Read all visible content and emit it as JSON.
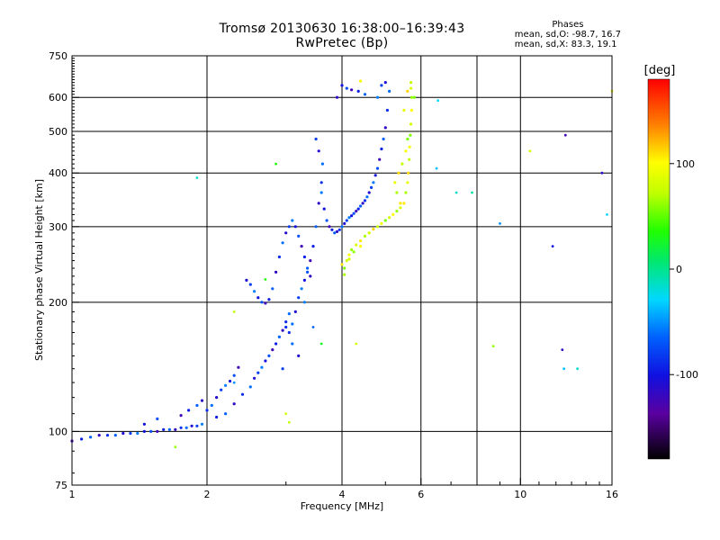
{
  "chart_data": {
    "type": "scatter",
    "title": "Tromsø 20130630 16:38:00–16:39:43",
    "subtitle": "RwPretec (Bp)",
    "xlabel": "Frequency [MHz]",
    "ylabel": "Stationary phase Virtual Height [km]",
    "x_scale": "log",
    "y_scale": "log",
    "xlim": [
      1,
      16
    ],
    "ylim": [
      75,
      750
    ],
    "x_ticks": [
      1,
      2,
      4,
      6,
      10,
      16
    ],
    "y_ticks": [
      75,
      100,
      200,
      300,
      400,
      500,
      600,
      750
    ],
    "x_gridlines": [
      2,
      4,
      6,
      8,
      10
    ],
    "y_gridlines": [
      100,
      200,
      300,
      400,
      500,
      600
    ],
    "grid": true,
    "phases_box": {
      "heading": "Phases",
      "line_o": "mean, sd,O: -98.7, 16.7",
      "line_x": "mean, sd,X:  83.3, 19.1"
    },
    "colorbar": {
      "label": "[deg]",
      "ticks": [
        100,
        0,
        -100
      ],
      "range": [
        -180,
        180
      ]
    },
    "series": [
      {
        "name": "O",
        "phase_mean": -98.7,
        "points": [
          [
            1.0,
            95
          ],
          [
            1.05,
            96
          ],
          [
            1.1,
            97
          ],
          [
            1.15,
            98
          ],
          [
            1.2,
            98
          ],
          [
            1.25,
            98
          ],
          [
            1.3,
            99
          ],
          [
            1.35,
            99
          ],
          [
            1.4,
            99
          ],
          [
            1.45,
            100
          ],
          [
            1.5,
            100
          ],
          [
            1.55,
            100
          ],
          [
            1.6,
            101
          ],
          [
            1.65,
            101
          ],
          [
            1.7,
            101
          ],
          [
            1.75,
            102
          ],
          [
            1.8,
            102
          ],
          [
            1.85,
            103
          ],
          [
            1.9,
            103
          ],
          [
            1.95,
            104
          ],
          [
            1.45,
            104
          ],
          [
            1.55,
            107
          ],
          [
            1.75,
            109
          ],
          [
            1.82,
            112
          ],
          [
            1.9,
            115
          ],
          [
            1.95,
            118
          ],
          [
            2.0,
            112
          ],
          [
            2.05,
            115
          ],
          [
            2.1,
            120
          ],
          [
            2.15,
            125
          ],
          [
            2.2,
            128
          ],
          [
            2.25,
            131
          ],
          [
            2.3,
            135
          ],
          [
            2.35,
            141
          ],
          [
            2.1,
            108
          ],
          [
            2.2,
            110
          ],
          [
            2.3,
            116
          ],
          [
            2.4,
            122
          ],
          [
            2.5,
            127
          ],
          [
            2.55,
            133
          ],
          [
            2.6,
            137
          ],
          [
            2.65,
            141
          ],
          [
            2.7,
            146
          ],
          [
            2.75,
            150
          ],
          [
            2.8,
            155
          ],
          [
            2.85,
            160
          ],
          [
            2.9,
            166
          ],
          [
            2.95,
            172
          ],
          [
            3.0,
            180
          ],
          [
            3.05,
            188
          ],
          [
            2.45,
            225
          ],
          [
            2.5,
            220
          ],
          [
            2.55,
            212
          ],
          [
            2.6,
            205
          ],
          [
            2.65,
            200
          ],
          [
            2.7,
            199
          ],
          [
            2.75,
            203
          ],
          [
            2.8,
            215
          ],
          [
            2.85,
            235
          ],
          [
            2.9,
            255
          ],
          [
            2.95,
            275
          ],
          [
            3.0,
            290
          ],
          [
            3.05,
            300
          ],
          [
            3.1,
            310
          ],
          [
            3.15,
            300
          ],
          [
            3.2,
            285
          ],
          [
            3.25,
            270
          ],
          [
            3.3,
            255
          ],
          [
            3.35,
            240
          ],
          [
            3.4,
            230
          ],
          [
            3.05,
            170
          ],
          [
            3.1,
            178
          ],
          [
            3.15,
            190
          ],
          [
            3.2,
            205
          ],
          [
            3.25,
            215
          ],
          [
            3.3,
            225
          ],
          [
            3.35,
            235
          ],
          [
            3.4,
            250
          ],
          [
            3.45,
            270
          ],
          [
            3.5,
            300
          ],
          [
            3.55,
            340
          ],
          [
            3.6,
            380
          ],
          [
            3.62,
            420
          ],
          [
            3.55,
            450
          ],
          [
            3.5,
            480
          ],
          [
            3.6,
            360
          ],
          [
            3.65,
            330
          ],
          [
            3.7,
            310
          ],
          [
            3.75,
            300
          ],
          [
            3.8,
            295
          ],
          [
            3.85,
            290
          ],
          [
            3.9,
            292
          ],
          [
            3.95,
            295
          ],
          [
            4.0,
            300
          ],
          [
            4.05,
            305
          ],
          [
            4.1,
            310
          ],
          [
            4.15,
            315
          ],
          [
            4.2,
            318
          ],
          [
            4.25,
            322
          ],
          [
            4.3,
            326
          ],
          [
            4.35,
            330
          ],
          [
            4.4,
            335
          ],
          [
            4.45,
            340
          ],
          [
            4.5,
            345
          ],
          [
            4.55,
            352
          ],
          [
            4.6,
            360
          ],
          [
            4.65,
            370
          ],
          [
            4.7,
            380
          ],
          [
            4.75,
            395
          ],
          [
            4.8,
            410
          ],
          [
            4.85,
            430
          ],
          [
            4.9,
            455
          ],
          [
            4.95,
            480
          ],
          [
            5.0,
            510
          ],
          [
            5.05,
            560
          ],
          [
            5.1,
            620
          ],
          [
            5.0,
            650
          ],
          [
            4.9,
            640
          ],
          [
            4.8,
            600
          ],
          [
            4.0,
            640
          ],
          [
            4.1,
            630
          ],
          [
            4.2,
            625
          ],
          [
            4.35,
            620
          ],
          [
            4.5,
            610
          ],
          [
            3.9,
            600
          ],
          [
            3.0,
            175
          ],
          [
            3.1,
            160
          ],
          [
            3.2,
            150
          ],
          [
            2.95,
            140
          ],
          [
            3.3,
            200
          ]
        ]
      },
      {
        "name": "X",
        "phase_mean": 83.3,
        "points": [
          [
            4.05,
            240
          ],
          [
            4.1,
            250
          ],
          [
            4.15,
            258
          ],
          [
            4.2,
            265
          ],
          [
            4.3,
            272
          ],
          [
            4.4,
            278
          ],
          [
            4.5,
            285
          ],
          [
            4.6,
            290
          ],
          [
            4.7,
            296
          ],
          [
            4.8,
            300
          ],
          [
            4.9,
            305
          ],
          [
            5.0,
            310
          ],
          [
            5.1,
            315
          ],
          [
            5.2,
            320
          ],
          [
            5.3,
            326
          ],
          [
            5.4,
            332
          ],
          [
            5.5,
            340
          ],
          [
            5.55,
            360
          ],
          [
            5.6,
            380
          ],
          [
            5.62,
            400
          ],
          [
            5.65,
            430
          ],
          [
            5.66,
            460
          ],
          [
            5.68,
            490
          ],
          [
            5.7,
            520
          ],
          [
            5.72,
            560
          ],
          [
            5.72,
            600
          ],
          [
            5.7,
            630
          ],
          [
            5.4,
            340
          ],
          [
            5.3,
            360
          ],
          [
            5.25,
            380
          ],
          [
            5.35,
            400
          ],
          [
            5.45,
            420
          ],
          [
            5.55,
            450
          ],
          [
            5.6,
            480
          ],
          [
            4.6,
            290
          ],
          [
            4.4,
            270
          ],
          [
            4.25,
            262
          ],
          [
            4.15,
            252
          ],
          [
            4.0,
            245
          ],
          [
            4.05,
            232
          ],
          [
            5.5,
            560
          ],
          [
            5.6,
            620
          ],
          [
            5.7,
            650
          ],
          [
            4.4,
            655
          ],
          [
            5.8,
            600
          ]
        ]
      }
    ],
    "scatter_outliers": [
      [
        1.25,
        98,
        -80
      ],
      [
        1.7,
        92,
        60
      ],
      [
        2.3,
        130,
        -60
      ],
      [
        3.0,
        110,
        80
      ],
      [
        3.05,
        105,
        70
      ],
      [
        2.85,
        420,
        30
      ],
      [
        3.45,
        175,
        -80
      ],
      [
        3.6,
        160,
        20
      ],
      [
        4.3,
        160,
        80
      ],
      [
        6.5,
        410,
        -40
      ],
      [
        6.55,
        590,
        -30
      ],
      [
        7.2,
        360,
        -20
      ],
      [
        7.8,
        360,
        -10
      ],
      [
        8.7,
        158,
        60
      ],
      [
        9.0,
        305,
        -60
      ],
      [
        10.5,
        450,
        80
      ],
      [
        11.8,
        270,
        -110
      ],
      [
        12.4,
        155,
        -120
      ],
      [
        12.6,
        490,
        -130
      ],
      [
        13.4,
        140,
        -20
      ],
      [
        12.5,
        140,
        -40
      ],
      [
        15.2,
        400,
        -120
      ],
      [
        15.6,
        320,
        -30
      ],
      [
        16.0,
        620,
        100
      ],
      [
        1.9,
        390,
        -20
      ],
      [
        2.3,
        190,
        70
      ],
      [
        2.7,
        226,
        30
      ]
    ]
  }
}
